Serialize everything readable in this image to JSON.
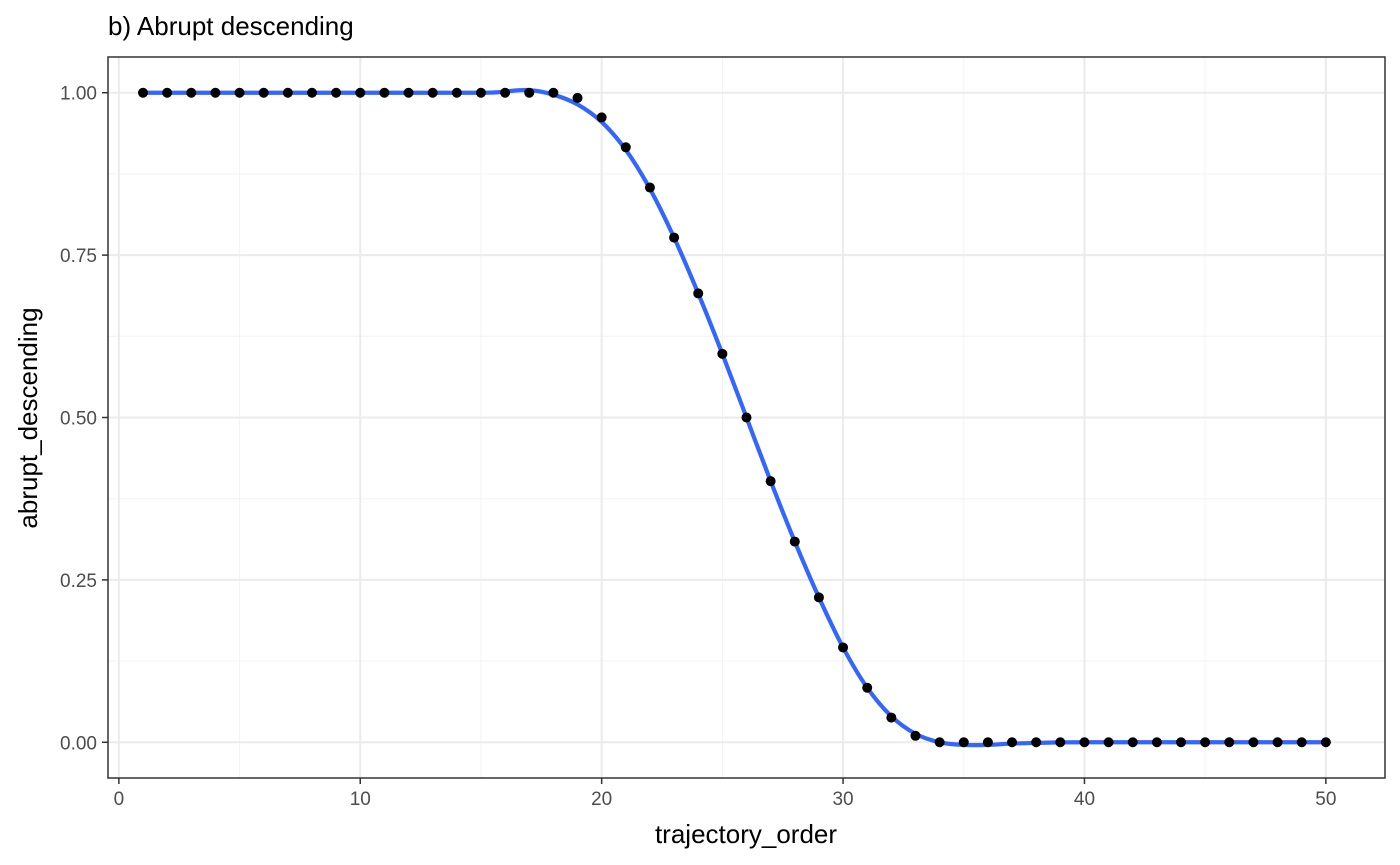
{
  "chart_data": {
    "type": "scatter",
    "title": "b) Abrupt descending",
    "xlabel": "trajectory_order",
    "ylabel": "abrupt_descending",
    "xlim": [
      -0.45,
      52.45
    ],
    "ylim": [
      -0.055,
      1.055
    ],
    "x_ticks": [
      0,
      10,
      20,
      30,
      40,
      50
    ],
    "x_tick_labels": [
      "0",
      "10",
      "20",
      "30",
      "40",
      "50"
    ],
    "y_ticks": [
      0,
      0.25,
      0.5,
      0.75,
      1.0
    ],
    "y_tick_labels": [
      "0.00",
      "0.25",
      "0.50",
      "0.75",
      "1.00"
    ],
    "grid": true,
    "legend": "none",
    "series": [
      {
        "kind": "points",
        "color": "#000000",
        "x": [
          1,
          2,
          3,
          4,
          5,
          6,
          7,
          8,
          9,
          10,
          11,
          12,
          13,
          14,
          15,
          16,
          17,
          18,
          19,
          20,
          21,
          22,
          23,
          24,
          25,
          26,
          27,
          28,
          29,
          30,
          31,
          32,
          33,
          34,
          35,
          36,
          37,
          38,
          39,
          40,
          41,
          42,
          43,
          44,
          45,
          46,
          47,
          48,
          49,
          50
        ],
        "y": [
          1,
          1,
          1,
          1,
          1,
          1,
          1,
          1,
          1,
          1,
          1,
          1,
          1,
          1,
          1,
          1,
          1,
          1,
          0.992,
          0.962,
          0.916,
          0.854,
          0.777,
          0.691,
          0.598,
          0.5,
          0.402,
          0.309,
          0.223,
          0.146,
          0.084,
          0.038,
          0.01,
          0,
          0,
          0,
          0,
          0,
          0,
          0,
          0,
          0,
          0,
          0,
          0,
          0,
          0,
          0,
          0,
          0
        ]
      },
      {
        "kind": "smooth",
        "color": "#3366ff",
        "x": [
          1,
          5,
          10,
          15,
          16,
          17,
          18,
          19,
          20,
          21,
          22,
          23,
          24,
          25,
          26,
          27,
          28,
          29,
          30,
          31,
          32,
          33,
          34,
          35,
          36,
          37,
          38,
          40,
          45,
          50
        ],
        "y": [
          1.0,
          1.0,
          1.0,
          1.0,
          1.002,
          1.004,
          0.997,
          0.982,
          0.955,
          0.912,
          0.852,
          0.777,
          0.691,
          0.598,
          0.5,
          0.402,
          0.309,
          0.223,
          0.146,
          0.084,
          0.04,
          0.013,
          0.0,
          -0.004,
          -0.004,
          -0.002,
          -0.001,
          0.0,
          0.0,
          0.0
        ]
      }
    ]
  }
}
